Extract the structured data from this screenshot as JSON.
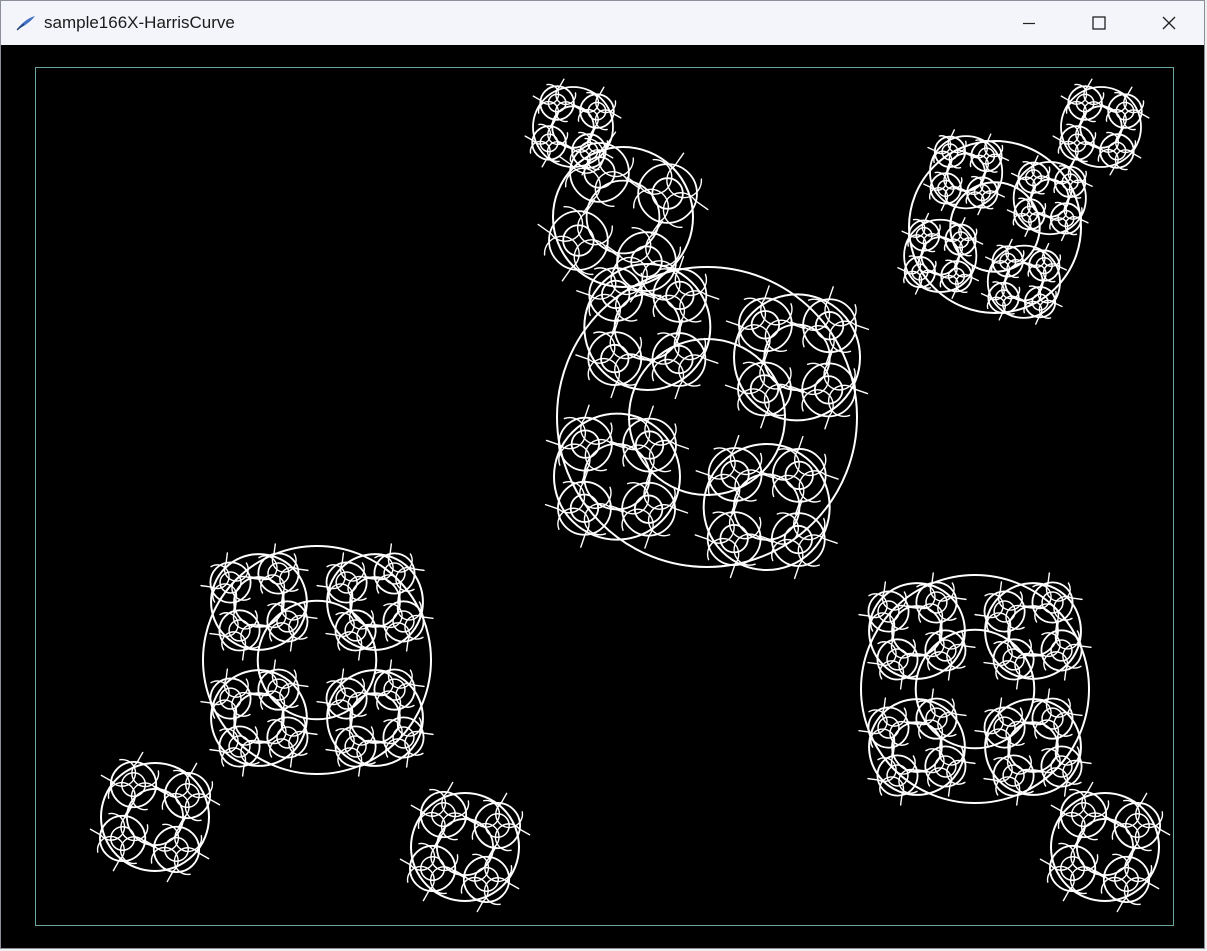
{
  "window": {
    "title": "sample166X-HarrisCurve"
  },
  "icons": {
    "app": "feather-pen-icon",
    "minimize": "minimize-icon",
    "maximize": "maximize-icon",
    "close": "close-icon"
  },
  "colors": {
    "titlebar_bg": "#f3f5fa",
    "canvas_bg": "#000000",
    "curve": "#ffffff",
    "frame": "#6aa6a0"
  }
}
